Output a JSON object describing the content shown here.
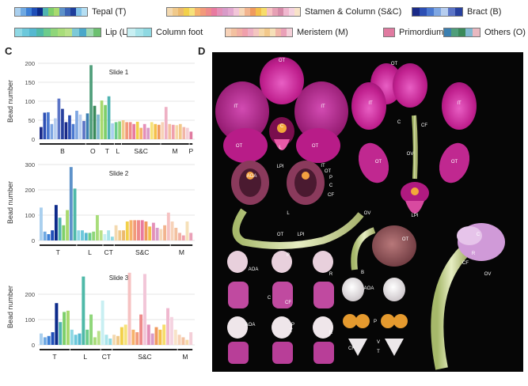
{
  "legend": [
    {
      "label": "Tepal (T)",
      "colors": [
        "#a9cfee",
        "#6fa9e2",
        "#3d7fd6",
        "#1f4fb8",
        "#0c2a8a",
        "#4fb3b0",
        "#7ecf6a",
        "#a8d96e",
        "#5d91c9",
        "#3b63b6",
        "#1d3d9b",
        "#7fc1e8",
        "#b5def2"
      ]
    },
    {
      "label": "Stamen & Column (S&C)",
      "colors": [
        "#f3d9b0",
        "#f0c98a",
        "#ecb96d",
        "#f2d04a",
        "#f6e27a",
        "#f6b26b",
        "#f29a7a",
        "#ee8a8a",
        "#e87aa0",
        "#e48fb8",
        "#d89bc8",
        "#e3a8d0",
        "#f2c6d8",
        "#f7d8b8",
        "#f2b48e",
        "#f09a5e",
        "#f4c04a",
        "#f7dd6a",
        "#f6c2c2",
        "#e6a0b4",
        "#d68aa8",
        "#f0b8cf",
        "#f5d3e0",
        "#f8e3c8"
      ]
    },
    {
      "label": "Bract (B)",
      "colors": [
        "#1a2a88",
        "#2c4fb4",
        "#4a78d0",
        "#7ea6e2",
        "#b6cdef",
        "#5b74c6",
        "#27409e"
      ]
    },
    {
      "label": "Lip (L)",
      "colors": [
        "#8fd8e4",
        "#6cc8db",
        "#55b8d0",
        "#4fb9a8",
        "#6ccc8c",
        "#8fd67a",
        "#a8dd7a",
        "#b9e18a",
        "#7cc9d8",
        "#4aa7c9",
        "#9ed8b0",
        "#6cc070"
      ]
    },
    {
      "label": "Column foot",
      "colors": [
        "#c8eff2",
        "#a8e4ea",
        "#8fd9e2"
      ]
    },
    {
      "label": "Meristem (M)",
      "colors": [
        "#f7d2b8",
        "#f3c1a0",
        "#f2b0a4",
        "#f0a0ac",
        "#eeb0c4",
        "#f4c6c0",
        "#f6d8a8",
        "#f2c88a",
        "#f6e0b8",
        "#f1b6a8",
        "#eaa0b8",
        "#f4cfd8"
      ]
    },
    {
      "label": "Primordium (P)",
      "colors": [
        "#e07aa0"
      ]
    },
    {
      "label": "Others (O)",
      "colors": [
        "#3b7fb0",
        "#4f9e7a",
        "#3a8a5a",
        "#7fb8d0",
        "#e8b8c0"
      ]
    }
  ],
  "panel_c": {
    "letter": "C",
    "ylabel": "Bead number",
    "charts": [
      {
        "title": "Slide 1",
        "yticks": [
          0,
          50,
          100,
          150,
          200
        ],
        "ymax": 200,
        "values": [
          32,
          70,
          71,
          40,
          55,
          107,
          80,
          45,
          63,
          40,
          75,
          65,
          48,
          68,
          195,
          88,
          65,
          102,
          90,
          113,
          42,
          45,
          47,
          50,
          45,
          45,
          40,
          46,
          30,
          40,
          30,
          45,
          40,
          38,
          45,
          85,
          40,
          38,
          37,
          40,
          32,
          30,
          20
        ],
        "colors": [
          "#1a2a88",
          "#2c4fb4",
          "#4a78d0",
          "#7ea6e2",
          "#b6cdef",
          "#5b74c6",
          "#27409e",
          "#1a2a88",
          "#2c4fb4",
          "#4a78d0",
          "#7ea6e2",
          "#b6cdef",
          "#5b74c6",
          "#3b7fb0",
          "#4f9e7a",
          "#3a8a5a",
          "#7fb8d0",
          "#a8d96e",
          "#7ecf6a",
          "#4fb3b0",
          "#a9cfee",
          "#6ccc8c",
          "#8fd67a",
          "#f0c98a",
          "#f29a7a",
          "#ee8a8a",
          "#e87aa0",
          "#f2d04a",
          "#f6b26b",
          "#e48fb8",
          "#d89bc8",
          "#f6e27a",
          "#f4c04a",
          "#f09a5e",
          "#f7d2b8",
          "#eeb0c4",
          "#f3c1a0",
          "#f0a0ac",
          "#f6d8a8",
          "#f2c88a",
          "#f1b6a8",
          "#f4cfd8",
          "#e07aa0"
        ],
        "groups": [
          {
            "label": "B",
            "start": 0,
            "end": 12
          },
          {
            "label": "O",
            "start": 13,
            "end": 16
          },
          {
            "label": "T",
            "start": 17,
            "end": 20
          },
          {
            "label": "L",
            "start": 21,
            "end": 22
          },
          {
            "label": "S&C",
            "start": 23,
            "end": 33
          },
          {
            "label": "M",
            "start": 34,
            "end": 41
          },
          {
            "label": "P",
            "start": 42,
            "end": 42
          }
        ]
      },
      {
        "title": "Slide 2",
        "yticks": [
          0,
          100,
          200,
          300
        ],
        "ymax": 300,
        "values": [
          130,
          35,
          25,
          40,
          140,
          90,
          60,
          120,
          290,
          205,
          40,
          40,
          30,
          30,
          35,
          100,
          40,
          25,
          40,
          15,
          60,
          40,
          40,
          75,
          80,
          80,
          80,
          80,
          75,
          55,
          70,
          50,
          45,
          60,
          110,
          75,
          50,
          30,
          20,
          75,
          30
        ],
        "colors": [
          "#a9cfee",
          "#6fa9e2",
          "#3d7fd6",
          "#1f4fb8",
          "#0c2a8a",
          "#4fb3b0",
          "#7ecf6a",
          "#a8d96e",
          "#5d91c9",
          "#4fb9a8",
          "#8fd8e4",
          "#6cc8db",
          "#55b8d0",
          "#6ccc8c",
          "#8fd67a",
          "#a8dd7a",
          "#b9e18a",
          "#c8eff2",
          "#a8e4ea",
          "#8fd9e2",
          "#f3d9b0",
          "#f0c98a",
          "#ecb96d",
          "#f2d04a",
          "#f6b26b",
          "#f29a7a",
          "#ee8a8a",
          "#e87aa0",
          "#f09a5e",
          "#f4c04a",
          "#e48fb8",
          "#d89bc8",
          "#f7d8b8",
          "#f2b48e",
          "#f6c2c2",
          "#f7d2b8",
          "#f3c1a0",
          "#f2b0a4",
          "#f0a0ac",
          "#f6e0b8",
          "#eaa0b8"
        ],
        "groups": [
          {
            "label": "T",
            "start": 0,
            "end": 9
          },
          {
            "label": "L",
            "start": 10,
            "end": 16
          },
          {
            "label": "CT",
            "start": 17,
            "end": 19
          },
          {
            "label": "S&C",
            "start": 20,
            "end": 34
          },
          {
            "label": "M",
            "start": 35,
            "end": 40
          }
        ]
      },
      {
        "title": "Slide 3",
        "yticks": [
          0,
          100,
          200
        ],
        "ymax": 300,
        "values": [
          45,
          30,
          35,
          50,
          165,
          90,
          130,
          135,
          60,
          40,
          45,
          270,
          60,
          120,
          30,
          55,
          175,
          40,
          25,
          40,
          35,
          70,
          80,
          285,
          60,
          50,
          120,
          280,
          80,
          45,
          70,
          60,
          80,
          145,
          110,
          60,
          40,
          30,
          20,
          50
        ],
        "colors": [
          "#a9cfee",
          "#6fa9e2",
          "#3d7fd6",
          "#1f4fb8",
          "#0c2a8a",
          "#4fb3b0",
          "#7ecf6a",
          "#a8d96e",
          "#8fd8e4",
          "#6cc8db",
          "#55b8d0",
          "#4fb9a8",
          "#6ccc8c",
          "#8fd67a",
          "#a8dd7a",
          "#b9e18a",
          "#c8eff2",
          "#a8e4ea",
          "#8fd9e2",
          "#f3d9b0",
          "#f0c98a",
          "#f2d04a",
          "#f6e27a",
          "#f6c2c2",
          "#f6b26b",
          "#f29a7a",
          "#ee8a8a",
          "#f2c6d8",
          "#e48fb8",
          "#d89bc8",
          "#f09a5e",
          "#f4c04a",
          "#f7dd6a",
          "#f0b8cf",
          "#f5d3e0",
          "#f8e3c8",
          "#f7d2b8",
          "#f3c1a0",
          "#f6d8a8",
          "#f4cfd8"
        ],
        "groups": [
          {
            "label": "T",
            "start": 0,
            "end": 7
          },
          {
            "label": "L",
            "start": 8,
            "end": 15
          },
          {
            "label": "CT",
            "start": 16,
            "end": 18
          },
          {
            "label": "S&C",
            "start": 19,
            "end": 35
          },
          {
            "label": "M",
            "start": 36,
            "end": 39
          }
        ]
      }
    ]
  },
  "panel_d": {
    "letter": "D",
    "labels": [
      "OT",
      "IT",
      "IT",
      "OT",
      "OT",
      "LPI",
      "L",
      "C",
      "OT",
      "IT",
      "IT",
      "C",
      "CF",
      "OV",
      "OT",
      "OT",
      "LPI",
      "AOA",
      "IT",
      "OT",
      "P",
      "C",
      "CF",
      "OV",
      "L",
      "OT",
      "LPI",
      "OT",
      "B",
      "C",
      "R",
      "CF",
      "OV",
      "AOA",
      "P",
      "R",
      "C",
      "CF",
      "AOA",
      "AOA",
      "P",
      "T",
      "R",
      "CF",
      "P",
      "V",
      "T"
    ]
  }
}
